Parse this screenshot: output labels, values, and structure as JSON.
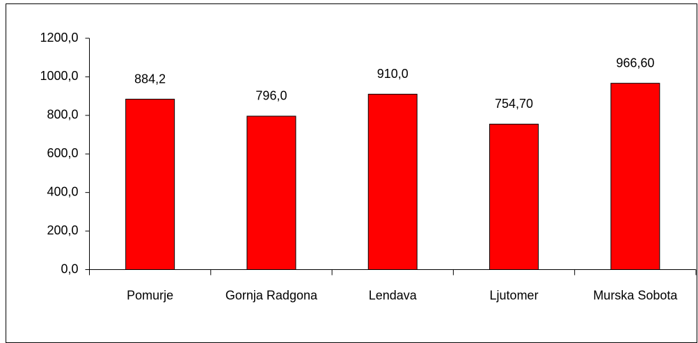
{
  "chart_data": {
    "type": "bar",
    "categories": [
      "Pomurje",
      "Gornja Radgona",
      "Lendava",
      "Ljutomer",
      "Murska Sobota"
    ],
    "values": [
      884.2,
      796.0,
      910.0,
      754.7,
      966.6
    ],
    "value_labels": [
      "884,2",
      "796,0",
      "910,0",
      "754,70",
      "966,60"
    ],
    "color": "#ff0000",
    "ylim": [
      0,
      1200
    ],
    "yticks": [
      {
        "value": 0,
        "label": "0,0"
      },
      {
        "value": 200,
        "label": "200,0"
      },
      {
        "value": 400,
        "label": "400,0"
      },
      {
        "value": 600,
        "label": "600,0"
      },
      {
        "value": 800,
        "label": "800,0"
      },
      {
        "value": 1000,
        "label": "1000,0"
      },
      {
        "value": 1200,
        "label": "1200,0"
      }
    ],
    "grid": false
  }
}
